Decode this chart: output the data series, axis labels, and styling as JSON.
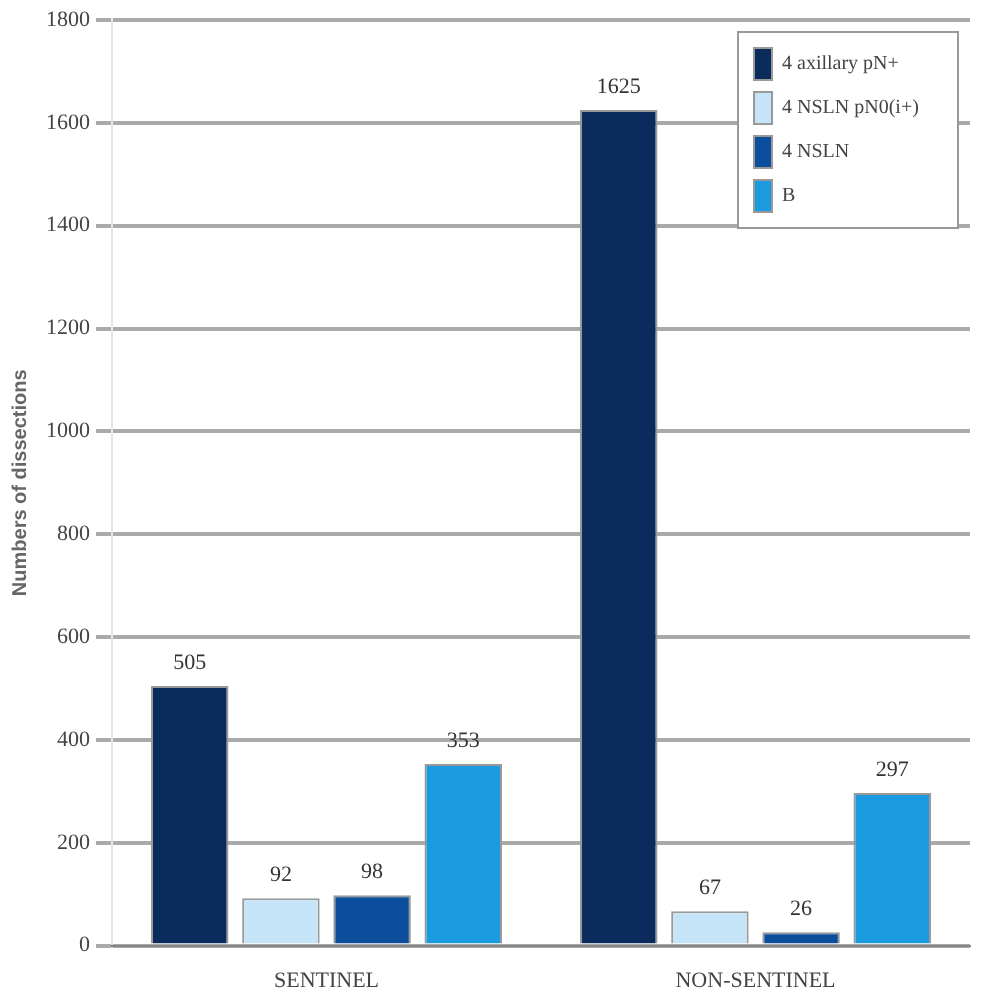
{
  "chart_data": {
    "type": "bar",
    "ylabel": "Numbers of dissections",
    "categories": [
      "SENTINEL",
      "NON-SENTINEL"
    ],
    "series": [
      {
        "name": "4 axillary pN+",
        "color": "#0b2b5c",
        "values": [
          505,
          1625
        ]
      },
      {
        "name": "4 NSLN pN0(i+)",
        "color": "#c6e4f7",
        "values": [
          92,
          67
        ]
      },
      {
        "name": "4 NSLN",
        "color": "#0c4e9c",
        "values": [
          98,
          26
        ]
      },
      {
        "name": "B",
        "color": "#1a9be0",
        "values": [
          353,
          297
        ]
      }
    ],
    "ylim": [
      0,
      1800
    ],
    "yticks": [
      0,
      200,
      400,
      600,
      800,
      1000,
      1200,
      1400,
      1600,
      1800
    ],
    "grid": "y",
    "legend": "top right",
    "data_labels": true
  }
}
